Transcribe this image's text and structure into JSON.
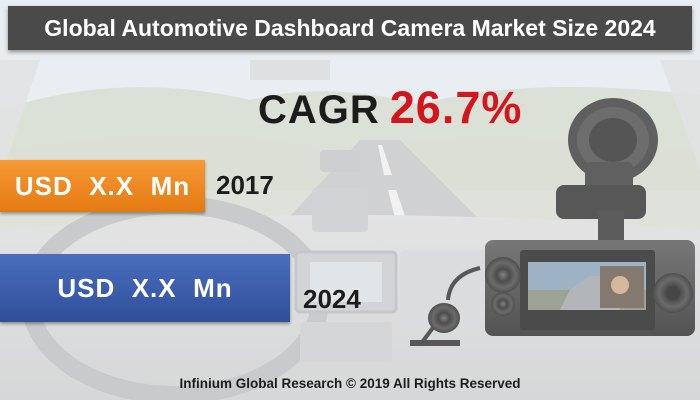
{
  "header": {
    "title": "Global Automotive Dashboard Camera Market Size 2024"
  },
  "cagr": {
    "label": "CAGR",
    "value": "26.7%",
    "value_color": "#d4161c"
  },
  "bars": [
    {
      "label": "USD  X.X  Mn",
      "year": "2017",
      "color": "#ef8a25"
    },
    {
      "label": "USD  X.X  Mn",
      "year": "2024",
      "color": "#3a5da8"
    }
  ],
  "footer": {
    "text": "Infinium Global Research © 2019 All Rights Reserved"
  }
}
